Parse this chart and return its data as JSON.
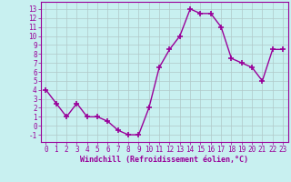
{
  "x": [
    0,
    1,
    2,
    3,
    4,
    5,
    6,
    7,
    8,
    9,
    10,
    11,
    12,
    13,
    14,
    15,
    16,
    17,
    18,
    19,
    20,
    21,
    22,
    23
  ],
  "y": [
    4.0,
    2.5,
    1.0,
    2.5,
    1.0,
    1.0,
    0.5,
    -0.5,
    -1.0,
    -1.0,
    2.0,
    6.5,
    8.5,
    10.0,
    13.0,
    12.5,
    12.5,
    11.0,
    7.5,
    7.0,
    6.5,
    5.0,
    8.5,
    8.5
  ],
  "line_color": "#990099",
  "marker": "+",
  "marker_size": 4,
  "bg_color": "#c8f0f0",
  "grid_color": "#b0c8c8",
  "xlabel": "Windchill (Refroidissement éolien,°C)",
  "xlabel_color": "#990099",
  "tick_color": "#990099",
  "axis_color": "#990099",
  "ylim": [
    -1.8,
    13.8
  ],
  "xlim": [
    -0.5,
    23.5
  ],
  "yticks": [
    -1,
    0,
    1,
    2,
    3,
    4,
    5,
    6,
    7,
    8,
    9,
    10,
    11,
    12,
    13
  ],
  "xticks": [
    0,
    1,
    2,
    3,
    4,
    5,
    6,
    7,
    8,
    9,
    10,
    11,
    12,
    13,
    14,
    15,
    16,
    17,
    18,
    19,
    20,
    21,
    22,
    23
  ],
  "tick_fontsize": 5.5,
  "xlabel_fontsize": 6.0
}
